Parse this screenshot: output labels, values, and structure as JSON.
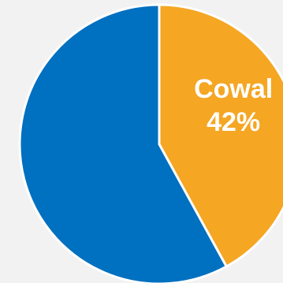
{
  "chart_data": {
    "type": "pie",
    "start_angle_deg": 0,
    "direction": "clockwise",
    "slices": [
      {
        "label": "Cowal",
        "value": 42,
        "value_label": "42%",
        "color": "#f5a623",
        "show_label": true
      },
      {
        "label": "",
        "value": 58,
        "value_label": "",
        "color": "#0070c0",
        "show_label": false
      }
    ],
    "legend": "none"
  },
  "colors": {
    "background": "#f2f2f2",
    "separator": "#ffffff"
  }
}
